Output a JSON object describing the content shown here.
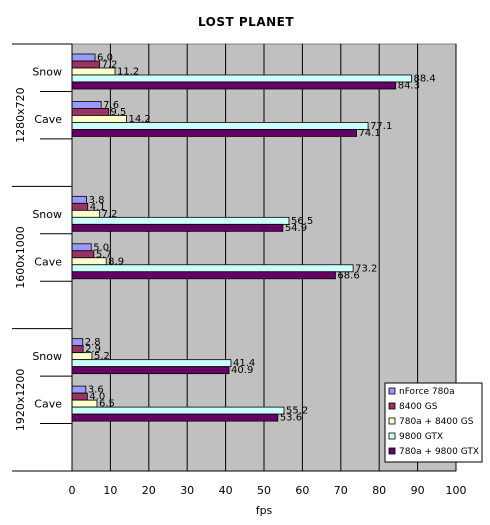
{
  "chart_data": {
    "type": "bar",
    "orientation": "horizontal",
    "title": "LOST PLANET",
    "xlabel": "fps",
    "xlim": [
      0,
      100
    ],
    "xticks": [
      0,
      10,
      20,
      30,
      40,
      50,
      60,
      70,
      80,
      90,
      100
    ],
    "grid": true,
    "legend_position": "bottom-right",
    "groups": [
      {
        "label": "1280x720",
        "categories": [
          "Snow",
          "Cave"
        ]
      },
      {
        "label": "1600x1000",
        "categories": [
          "Snow",
          "Cave"
        ]
      },
      {
        "label": "1920x1200",
        "categories": [
          "Snow",
          "Cave"
        ]
      }
    ],
    "series": [
      {
        "name": "nForce 780a",
        "color": "#9999ff",
        "values": [
          6.0,
          7.6,
          3.8,
          5.0,
          2.8,
          3.6
        ],
        "labels": [
          "6.0",
          "7.6",
          "3.8",
          "5.0",
          "2.8",
          "3.6"
        ]
      },
      {
        "name": "8400 GS",
        "color": "#993366",
        "values": [
          7.2,
          9.5,
          4.1,
          5.7,
          2.9,
          4.0
        ],
        "labels": [
          "7.2",
          "9.5",
          "4.1",
          "5.7",
          "2.9",
          "4.0"
        ]
      },
      {
        "name": "780a + 8400 GS",
        "color": "#ffffcc",
        "values": [
          11.2,
          14.2,
          7.2,
          8.9,
          5.2,
          6.5
        ],
        "labels": [
          "11.2",
          "14.2",
          "7.2",
          "8.9",
          "5.2",
          "6.5"
        ]
      },
      {
        "name": "9800 GTX",
        "color": "#ccffff",
        "values": [
          88.4,
          77.1,
          56.5,
          73.2,
          41.4,
          55.2
        ],
        "labels": [
          "88.4",
          "77.1",
          "56.5",
          "73.2",
          "41.4",
          "55.2"
        ]
      },
      {
        "name": "780a + 9800 GTX",
        "color": "#660066",
        "values": [
          84.3,
          74.1,
          54.9,
          68.6,
          40.9,
          53.6
        ],
        "labels": [
          "84.3",
          "74.1",
          "54.9",
          "68.6",
          "40.9",
          "53.6"
        ]
      }
    ],
    "plot_background": "#c0c0c0"
  }
}
